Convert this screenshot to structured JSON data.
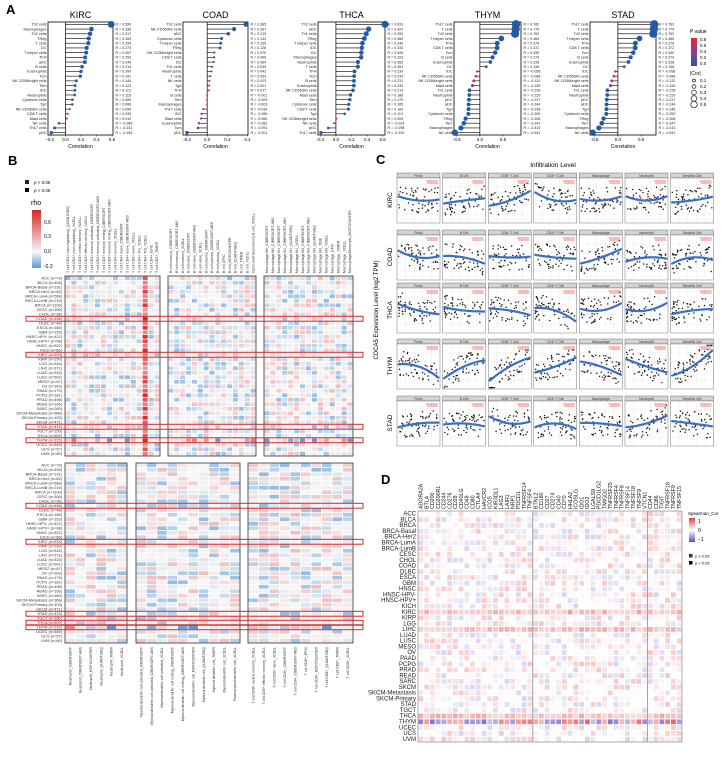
{
  "panel_labels": {
    "a": "A",
    "b": "B",
    "c": "C",
    "d": "D"
  },
  "legend_a": {
    "pvalue_title": "P value",
    "pvalue_ticks": [
      "0.8",
      "0.6",
      "0.4",
      "0.2",
      "0.0"
    ],
    "cor_title": "|Cor|",
    "cor_ticks": [
      "0.1",
      "0.2",
      "0.3",
      "0.4",
      "0.5"
    ],
    "colors": {
      "high_p": "#e8262a",
      "mid_p": "#8e3f8f",
      "low_p": "#2459a6"
    }
  },
  "legend_b": {
    "p_ge": "p > 0.05",
    "p_lt": "p < 0.05",
    "title": "rho",
    "ticks": [
      "0.6",
      "0.3",
      "0.0",
      "-0.3"
    ],
    "colors": {
      "pos": "#d6262b",
      "zero": "#f7f7f7",
      "neg": "#5b9bd5"
    }
  },
  "legend_d": {
    "title": "Spearman_Cor",
    "ticks": [
      "1",
      "0",
      "−1"
    ],
    "p_ge": "p ≥ 0.05",
    "p_lt": "p < 0.05",
    "colors": {
      "pos": "#e3403f",
      "zero": "#ffffff",
      "neg": "#5a4fc4"
    }
  },
  "chart_data": [
    {
      "type": "lollipop",
      "title": "KIRC",
      "xlabel": "Correlation",
      "xlim": [
        -0.226,
        0.613
      ],
      "ticks": [
        "-0.2",
        "0.0",
        "0.2",
        "0.4",
        "0.6"
      ],
      "tick_values": [
        -0.2,
        0,
        0.2,
        0.4,
        0.6
      ],
      "cells": [
        "Th2 cells",
        "Macrophages",
        "Th1 cells",
        "TReg",
        "T cells",
        "DC",
        "T helper cells",
        "TFH",
        "aDC",
        "B cells",
        "Eosinophils",
        "Tcm",
        "NK CD56bright cells",
        "Tem",
        "iDC",
        "Neutrophils",
        "Cytotoxic cells",
        "Tgd",
        "NK CD56dim cells",
        "CD8 T cells",
        "Mast cells",
        "NK cells",
        "Th17 cells",
        "pDC"
      ],
      "r": [
        0.59,
        0.335,
        0.317,
        0.3,
        0.295,
        0.273,
        0.267,
        0.253,
        0.249,
        0.214,
        0.2,
        0.191,
        0.14,
        0.123,
        0.121,
        0.118,
        0.089,
        0.088,
        0.055,
        0.03,
        0.019,
        -0.085,
        -0.141,
        -0.183
      ]
    },
    {
      "type": "lollipop",
      "title": "COAD",
      "xlabel": "Correlation",
      "xlim": [
        -0.24,
        0.405
      ],
      "ticks": [
        "-0.2",
        "0.0",
        "0.2",
        "0.4"
      ],
      "tick_values": [
        -0.2,
        0,
        0.2,
        0.4
      ],
      "cells": [
        "Th2 cells",
        "NK CD56dim cells",
        "aDC",
        "Cytotoxic cells",
        "T helper cells",
        "TReg",
        "NK CD56bright cells",
        "CD8 T cells",
        "DC",
        "Th1 cells",
        "Neutrophils",
        "T cells",
        "NK cells",
        "Tgd",
        "TFH",
        "B cells",
        "Tem",
        "Macrophages",
        "Th17 cells",
        "iDC",
        "Mast cells",
        "Eosinophils",
        "Tcm",
        "pDC"
      ],
      "r": [
        0.385,
        0.267,
        0.21,
        0.143,
        0.135,
        0.128,
        0.07,
        0.069,
        0.064,
        0.049,
        0.042,
        0.033,
        0.023,
        0.021,
        0.017,
        -0.001,
        -0.003,
        -0.003,
        -0.039,
        -0.056,
        -0.06,
        -0.082,
        -0.091,
        -0.201
      ]
    },
    {
      "type": "lollipop",
      "title": "THCA",
      "xlabel": "Correlation",
      "xlim": [
        -0.23,
        0.63
      ],
      "ticks": [
        "-0.2",
        "0.0",
        "0.2",
        "0.4",
        "0.6"
      ],
      "tick_values": [
        -0.2,
        0,
        0.2,
        0.4,
        0.6
      ],
      "cells": [
        "Th2 cells",
        "aDC",
        "Th1 cells",
        "TReg",
        "T helper cells",
        "iDC",
        "DC",
        "Macrophages",
        "Neutrophils",
        "T cells",
        "TFH",
        "Tcm",
        "B cells",
        "Eosinophils",
        "NK CD56dim cells",
        "Mast cells",
        "Tem",
        "Cytotoxic cells",
        "CD8 T cells",
        "Tgd",
        "NK CD56bright cells",
        "NK cells",
        "pDC",
        "Th17 cells"
      ],
      "r": [
        0.631,
        0.42,
        0.39,
        0.365,
        0.34,
        0.333,
        0.326,
        0.323,
        0.283,
        0.281,
        0.239,
        0.234,
        0.231,
        0.23,
        0.219,
        0.188,
        0.179,
        0.165,
        0.16,
        0.113,
        0.009,
        -0.024,
        -0.098,
        -0.192
      ]
    },
    {
      "type": "lollipop",
      "title": "THYM",
      "xlabel": "Correlation",
      "xlim": [
        -0.56,
        0.89
      ],
      "ticks": [
        "-0.5",
        "0.0",
        "0.5"
      ],
      "tick_values": [
        -0.5,
        0,
        0.5
      ],
      "cells": [
        "Th17 cells",
        "T cells",
        "Th2 cells",
        "T helper cells",
        "TFH",
        "CD8 T cells",
        "Tcm",
        "B cells",
        "Eosinophils",
        "DC",
        "iDC",
        "NK CD56dim cells",
        "NK CD56bright cells",
        "Mast cells",
        "Th1 cells",
        "Neutrophils",
        "pDC",
        "aDC",
        "Tgd",
        "Cytotoxic cells",
        "TReg",
        "Tem",
        "Macrophages",
        "NK cells"
      ],
      "r": [
        0.782,
        0.775,
        0.762,
        0.465,
        0.376,
        0.372,
        0.33,
        0.274,
        0.228,
        0.138,
        -0.058,
        -0.088,
        -0.132,
        -0.159,
        -0.226,
        -0.229,
        -0.237,
        -0.244,
        -0.246,
        -0.25,
        -0.308,
        -0.347,
        -0.41,
        -0.541
      ]
    },
    {
      "type": "lollipop",
      "title": "STAD",
      "xlabel": "Correlation",
      "xlim": [
        -0.6,
        0.82
      ],
      "ticks": [
        "-0.5",
        "0.0",
        "0.5"
      ],
      "tick_values": [
        -0.5,
        0,
        0.5
      ],
      "cells": [
        "Th17 cells",
        "T cells",
        "Th2 cells",
        "T helper cells",
        "TFH",
        "CD8 T cells",
        "Tcm",
        "B cells",
        "Eosinophils",
        "DC",
        "iDC",
        "NK CD56dim cells",
        "NK CD56bright cells",
        "Mast cells",
        "Th1 cells",
        "Neutrophils",
        "pDC",
        "aDC",
        "Tgd",
        "Cytotoxic cells",
        "TReg",
        "Tem",
        "Macrophages",
        "NK cells"
      ],
      "r": [
        0.782,
        0.775,
        0.762,
        0.465,
        0.376,
        0.372,
        0.33,
        0.274,
        0.228,
        0.138,
        -0.058,
        -0.088,
        -0.132,
        -0.159,
        -0.226,
        -0.229,
        -0.237,
        -0.244,
        -0.246,
        -0.25,
        -0.308,
        -0.347,
        -0.41,
        -0.541
      ]
    },
    {
      "type": "heatmap",
      "id": "B",
      "value_range": [
        -0.3,
        0.8
      ],
      "rows": [
        "ACC (n=79)",
        "BLCA (n=408)",
        "BRCA-Basal (n=191)",
        "BRCA-Her2 (n=82)",
        "BRCA-LumA (n=568)",
        "BRCA-LumB (n=219)",
        "BRCA (n=1100)",
        "CESC (n=306)",
        "CHOL (n=36)",
        "COAD (n=458)",
        "DLBC (n=48)",
        "ESCA (n=185)",
        "GBM (n=153)",
        "HNSC-HPV- (n=422)",
        "HNSC-HPV+ (n=98)",
        "HNSC (n=522)",
        "KICH (n=66)",
        "KIRC (n=533)",
        "KIRP (n=290)",
        "LGG (n=516)",
        "LIHC (n=371)",
        "LUAD (n=515)",
        "LUSC (n=501)",
        "MESO (n=87)",
        "OV (n=303)",
        "PAAD (n=179)",
        "PCPG (n=181)",
        "PRAD (n=498)",
        "READ (n=166)",
        "SARC (n=260)",
        "SKCM-Metastasis (n=368)",
        "SKCM-Primary (n=103)",
        "SKCM (n=471)",
        "STAD (n=415)",
        "TGCT (n=150)",
        "THCA (n=509)",
        "THYM (n=120)",
        "UCEC (n=545)",
        "UCS (n=57)",
        "UVM (n=80)"
      ],
      "highlight_rows_top": [
        "COAD (n=458)",
        "KIRC (n=533)",
        "STAD (n=415)",
        "THYM (n=120)"
      ],
      "highlight_rows_bottom": [
        "COAD (n=458)",
        "KIRC (n=533)",
        "STAD (n=415)",
        "THCA (n=509)",
        "THYM (n=120)"
      ],
      "top_groups": [
        [
          "T cell CD4+ (non-regulatory)_QUANTISEQ",
          "T cell CD4+ (non-regulatory)_XCELL",
          "T cell CD4+ central memory_XCELL",
          "T cell CD4+ effector memory_XCELL",
          "T cell CD4+ memory activated_CIBERSORT",
          "T cell CD4+ memory activated_CIBERSORT-ABS",
          "T cell CD4+ memory resting_CIBERSORT",
          "T cell CD4+ memory resting_CIBERSORT-ABS",
          "T cell CD4+ memory_XCELL",
          "T cell CD4+ naive_CIBERSORT",
          "T cell CD4+ naive_CIBERSORT-ABS",
          "T cell CD4+ naive_XCELL",
          "T cell CD4+ Th1_XCELL",
          "T cell CD4+ Th2_XCELL",
          "T cell CD4+_EPIC",
          "T cell CD4+_TIMER"
        ],
        [
          "B cell memory_CIBERSORT",
          "B cell memory_CIBERSORT-ABS",
          "B cell memory_XCELL",
          "B cell naive_CIBERSORT",
          "B cell naive_CIBERSORT-ABS",
          "B cell naive_XCELL",
          "B cell plasma_CIBERSORT",
          "B cell plasma_CIBERSORT-ABS",
          "B cell plasma_XCELL",
          "B cell_EPIC",
          "B cell_MCPCOUNTER",
          "B cell_QUANTISEQ",
          "B cell_TIMER",
          "B cell_XCELL",
          "Class-switched memory B cell_XCELL"
        ],
        [
          "Macrophage M0_CIBERSORT",
          "Macrophage M0_CIBERSORT-ABS",
          "Macrophage M1_CIBERSORT",
          "Macrophage M1_CIBERSORT-ABS",
          "Macrophage M1_QUANTISEQ",
          "Macrophage M1_XCELL",
          "Macrophage M2_CIBERSORT",
          "Macrophage M2_CIBERSORT-ABS",
          "Macrophage M2_QUANTISEQ",
          "Macrophage M2_TIDE",
          "Macrophage M2_XCELL",
          "Macrophage_EPIC",
          "Macrophage_TIMER",
          "Macrophage_XCELL",
          "Macrophage/Monocyte_MCPCOUNTER"
        ]
      ],
      "bottom_groups": [
        [
          "Neutrophil_CIBERSORT",
          "Neutrophil_CIBERSORT-ABS",
          "Neutrophil_MCPCOUNTER",
          "Neutrophil_QUANTISEQ",
          "Neutrophil_TIMER",
          "Neutrophil_XCELL"
        ],
        [
          "Myeloid dendritic cell activated_CIBERSORT",
          "Myeloid dendritic cell activated_CIBERSORT-ABS",
          "Myeloid dendritic cell activated_XCELL",
          "Myeloid dendritic cell resting_CIBERSORT",
          "Myeloid dendritic cell resting_CIBERSORT-ABS",
          "Myeloid dendritic cell_MCPCOUNTER",
          "Myeloid dendritic cell_QUANTISEQ",
          "Myeloid dendritic cell_TIMER",
          "Myeloid dendritic cell_XCELL",
          "Plasmacytoid dendritic cell_XCELL"
        ],
        [
          "T cell CD8+ central memory_XCELL",
          "T cell CD8+ effector memory_XCELL",
          "T cell CD8+ naive_XCELL",
          "T cell CD8+_CIBERSORT",
          "T cell CD8+_CIBERSORT-ABS",
          "T cell CD8+_EPIC",
          "T cell CD8+_MCPCOUNTER",
          "T cell CD8+_QUANTISEQ",
          "T cell CD8+_TIMER",
          "T cell CD8+_XCELL"
        ]
      ]
    },
    {
      "type": "scatter",
      "id": "C",
      "title": "Infiltration Level",
      "ylabel": "CDCA5 Expression Level (log2 TPM)",
      "rows": [
        "KIRC",
        "COAD",
        "THCA",
        "THYM",
        "STAD"
      ],
      "columns": [
        "Purity",
        "B Cell",
        "CD8+ T Cell",
        "CD4+ T Cell",
        "Macrophage",
        "Neutrophil",
        "Dendritic Cell"
      ]
    },
    {
      "type": "heatmap",
      "id": "D",
      "legend": "Spearman_Cor",
      "value_range": [
        -1,
        1
      ],
      "rows": [
        "ACC",
        "BLCA",
        "BRCA",
        "BRCA-Basal",
        "BRCA-Her2",
        "BRCA-LumA",
        "BRCA-LumB",
        "CESC",
        "CHOL",
        "COAD",
        "DLBC",
        "ESCA",
        "GBM",
        "HNSC",
        "HNSC-HPV-",
        "HNSC-HPV+",
        "KICH",
        "KIRC",
        "KIRP",
        "LGG",
        "LIHC",
        "LUAD",
        "LUSC",
        "MESO",
        "OV",
        "PAAD",
        "PCPG",
        "PRAD",
        "READ",
        "SARC",
        "SKCM",
        "SKCM-Metastasis",
        "SKCM-Primary",
        "STAD",
        "TGCT",
        "THCA",
        "THYM",
        "UCEC",
        "UCS",
        "UVM"
      ],
      "column_groups": [
        [
          "ADORA2A",
          "BTLA",
          "CD200",
          "CD200R1",
          "CD244",
          "CD276",
          "CD28",
          "CD40LG",
          "CD48",
          "CD80",
          "CTLA4",
          "HAVCR2",
          "ICOS",
          "KIR3DL1",
          "LAG3",
          "LAIR1",
          "NRP1",
          "PDCD1",
          "TNFRSF14",
          "TNFSF4"
        ],
        [
          "BTNL2",
          "CD160",
          "CD27",
          "CD274",
          "CD40",
          "CD70",
          "HHLA2",
          "ICOSLG",
          "IDO1",
          "IDO2",
          "LGALS9",
          "PDCD1LG2",
          "TMIGD2",
          "TNFRSF25",
          "TNFRSF4",
          "TNFRSF8",
          "TNFSF14",
          "TNFSF18",
          "TNFSF9",
          "VTCN1"
        ],
        [
          "CD44",
          "CD86",
          "TIGIT",
          "TNFRSF18",
          "TNFRSF9",
          "TNFSF15"
        ]
      ]
    }
  ]
}
